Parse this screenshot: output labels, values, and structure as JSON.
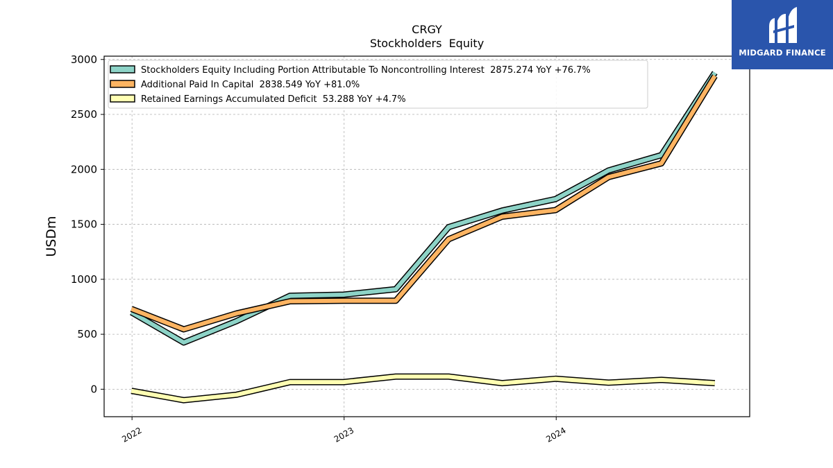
{
  "brand": {
    "name": "MIDGARD FINANCE",
    "bg_color": "#2a55ac"
  },
  "chart_data": {
    "type": "line",
    "title": "CRGY",
    "subtitle": "Stockholders  Equity",
    "ylabel": "USDm",
    "xlabel": "",
    "ylim": [
      -250,
      3030
    ],
    "xlim": [
      "2021-11-14",
      "2024-11-29"
    ],
    "yticks": [
      0,
      500,
      1000,
      1500,
      2000,
      2500,
      3000
    ],
    "xticks": [
      {
        "date": "2022-01-01",
        "label": "2022"
      },
      {
        "date": "2023-01-01",
        "label": "2023"
      },
      {
        "date": "2024-01-01",
        "label": "2024"
      }
    ],
    "grid": true,
    "legend_position": "top-left",
    "x": [
      "2021-12-31",
      "2022-03-31",
      "2022-06-30",
      "2022-09-30",
      "2022-12-31",
      "2023-03-31",
      "2023-06-30",
      "2023-09-30",
      "2023-12-31",
      "2024-03-31",
      "2024-06-30",
      "2024-09-30"
    ],
    "series": [
      {
        "name": "Stockholders Equity Including Portion Attributable To Noncontrolling Interest",
        "legend_label": "Stockholders Equity Including Portion Attributable To Noncontrolling Interest  2875.274 YoY +76.7%",
        "color": "#8dd3c7",
        "values": [
          700,
          425,
          620,
          850,
          860,
          910,
          1475,
          1625,
          1730,
          1990,
          2130,
          2880
        ]
      },
      {
        "name": "Additional Paid In Capital",
        "legend_label": "Additional Paid In Capital  2838.549 YoY +81.0%",
        "color": "#fdb462",
        "values": [
          730,
          545,
          690,
          800,
          805,
          805,
          1365,
          1570,
          1630,
          1930,
          2055,
          2850
        ]
      },
      {
        "name": "Retained Earnings Accumulated Deficit",
        "legend_label": "Retained Earnings Accumulated Deficit  53.288 YoY +4.7%",
        "color": "#ffffb3",
        "values": [
          -15,
          -100,
          -50,
          65,
          65,
          115,
          115,
          55,
          95,
          60,
          85,
          55
        ]
      }
    ]
  }
}
